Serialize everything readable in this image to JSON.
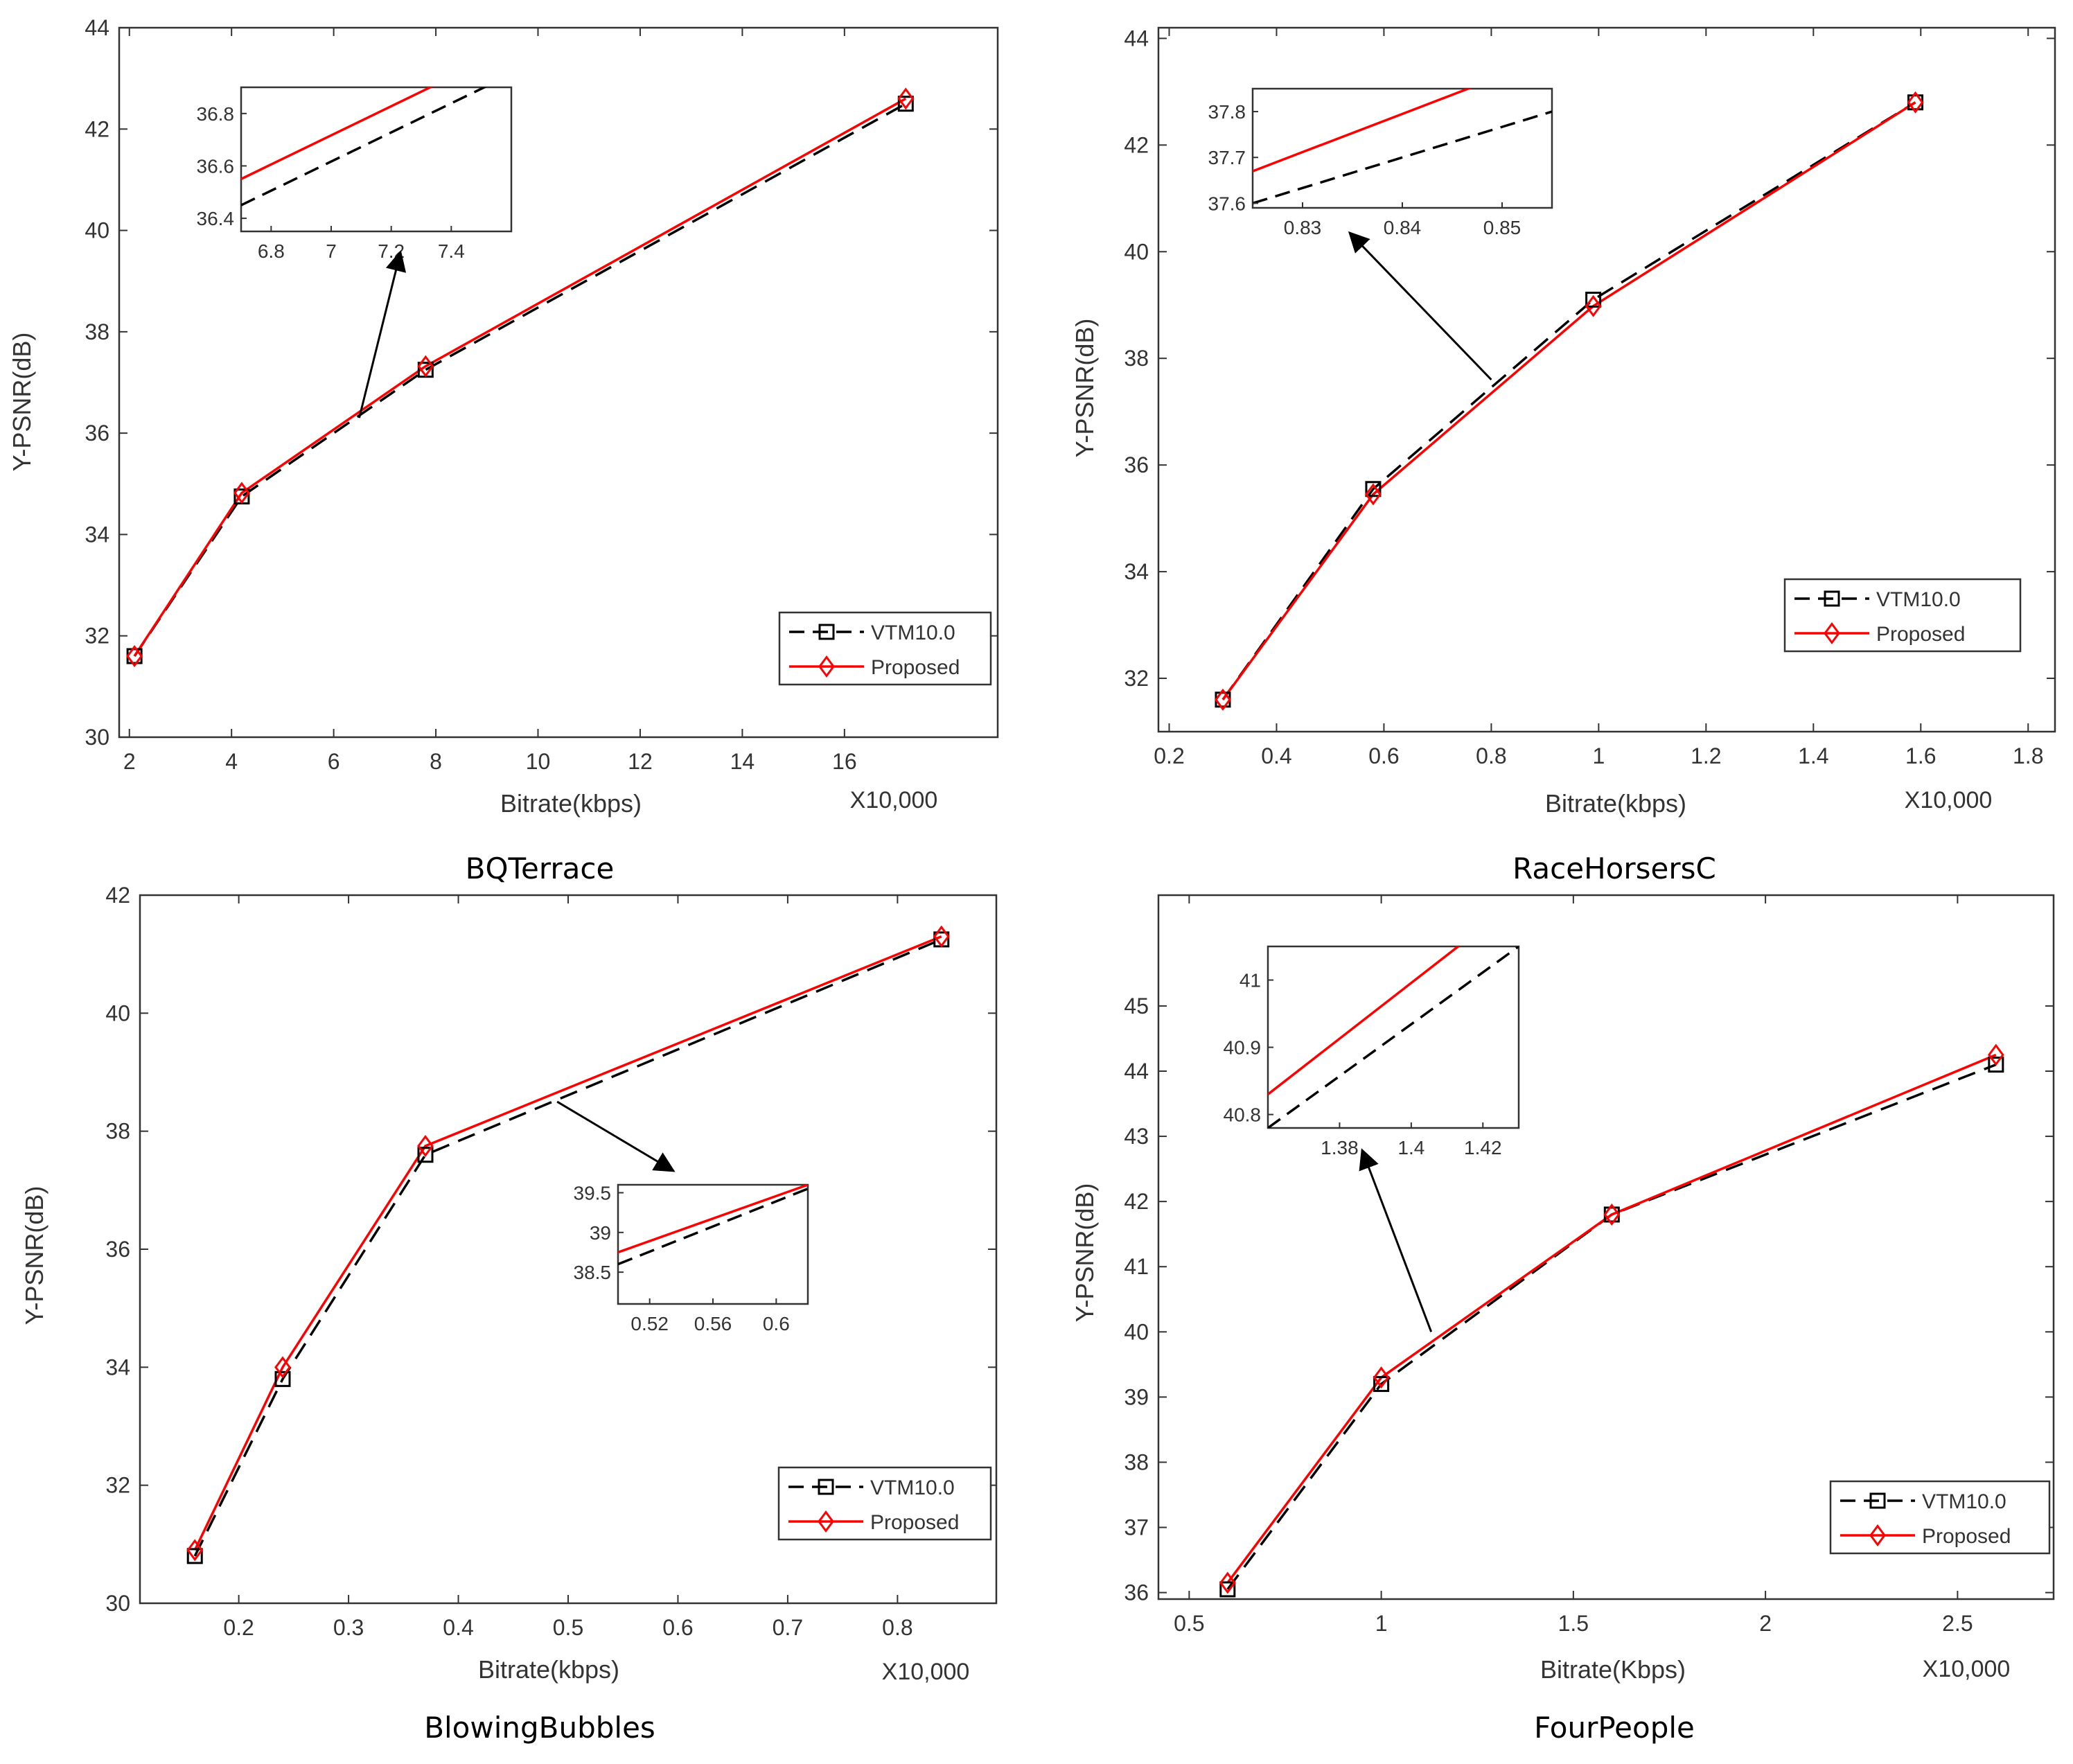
{
  "chart_data": [
    {
      "type": "line",
      "title": "BQTerrace",
      "xlabel": "Bitrate(kbps)",
      "ylabel": "Y-PSNR(dB)",
      "x_scale_note": "X10,000",
      "xlim": [
        1.8,
        19.0
      ],
      "ylim": [
        30,
        44
      ],
      "xticks": [
        2,
        4,
        6,
        8,
        10,
        12,
        14,
        16
      ],
      "yticks": [
        30,
        32,
        34,
        36,
        38,
        40,
        42,
        44
      ],
      "legend_position": "bottom-right",
      "series": [
        {
          "name": "VTM10.0",
          "style": "dashed",
          "color": "#000000",
          "marker": "square",
          "x": [
            2.1,
            4.2,
            7.8,
            17.2
          ],
          "y": [
            31.6,
            34.75,
            37.25,
            42.5
          ]
        },
        {
          "name": "Proposed",
          "style": "solid",
          "color": "#ff0000",
          "marker": "diamond",
          "x": [
            2.1,
            4.2,
            7.8,
            17.2
          ],
          "y": [
            31.6,
            34.82,
            37.32,
            42.6
          ]
        }
      ],
      "inset": {
        "xlim": [
          6.7,
          7.6
        ],
        "ylim": [
          36.35,
          36.9
        ],
        "xticks": [
          6.8,
          7.0,
          7.2,
          7.4
        ],
        "xticklabels": [
          "6.8",
          "7",
          "7.2",
          "7.4"
        ],
        "yticks": [
          36.4,
          36.6,
          36.8
        ],
        "yticklabels": [
          "36.4",
          "36.6",
          "36.8"
        ],
        "series": [
          {
            "name": "VTM10.0",
            "x": [
              6.7,
              7.6
            ],
            "y": [
              36.45,
              36.95
            ]
          },
          {
            "name": "Proposed",
            "x": [
              6.7,
              7.6
            ],
            "y": [
              36.55,
              37.05
            ]
          }
        ],
        "arrow_from": [
          6.5,
          36.3
        ]
      }
    },
    {
      "type": "line",
      "title": "RaceHorsersC",
      "xlabel": "Bitrate(kbps)",
      "ylabel": "Y-PSNR(dB)",
      "x_scale_note": "X10,000",
      "xlim": [
        0.18,
        1.85
      ],
      "ylim": [
        31.0,
        44.2
      ],
      "xticks": [
        0.2,
        0.4,
        0.6,
        0.8,
        1.0,
        1.2,
        1.4,
        1.6,
        1.8
      ],
      "xticklabels": [
        "0.2",
        "0.4",
        "0.6",
        "0.8",
        "1",
        "1.2",
        "1.4",
        "1.6",
        "1.8"
      ],
      "yticks": [
        32,
        34,
        36,
        38,
        40,
        42,
        44
      ],
      "legend_position": "bottom-right",
      "series": [
        {
          "name": "VTM10.0",
          "style": "dashed",
          "color": "#000000",
          "marker": "square",
          "x": [
            0.3,
            0.58,
            0.99,
            1.59
          ],
          "y": [
            31.6,
            35.55,
            39.1,
            42.8
          ]
        },
        {
          "name": "Proposed",
          "style": "solid",
          "color": "#ff0000",
          "marker": "diamond",
          "x": [
            0.3,
            0.58,
            0.99,
            1.59
          ],
          "y": [
            31.6,
            35.45,
            38.98,
            42.8
          ]
        }
      ],
      "inset": {
        "xlim": [
          0.825,
          0.855
        ],
        "ylim": [
          37.59,
          37.85
        ],
        "xticks": [
          0.83,
          0.84,
          0.85
        ],
        "xticklabels": [
          "0.83",
          "0.84",
          "0.85"
        ],
        "yticks": [
          37.6,
          37.7,
          37.8
        ],
        "yticklabels": [
          "37.6",
          "37.7",
          "37.8"
        ],
        "series": [
          {
            "name": "VTM10.0",
            "x": [
              0.825,
              0.855
            ],
            "y": [
              37.6,
              37.8
            ]
          },
          {
            "name": "Proposed",
            "x": [
              0.825,
              0.855
            ],
            "y": [
              37.67,
              37.92
            ]
          }
        ],
        "arrow_from": [
          0.8,
          37.6
        ]
      }
    },
    {
      "type": "line",
      "title": "BlowingBubbles",
      "xlabel": "Bitrate(kbps)",
      "ylabel": "Y-PSNR(dB)",
      "x_scale_note": "X10,000",
      "xlim": [
        0.11,
        0.89
      ],
      "ylim": [
        30,
        42
      ],
      "xticks": [
        0.2,
        0.3,
        0.4,
        0.5,
        0.6,
        0.7,
        0.8
      ],
      "xticklabels": [
        "0.2",
        "0.3",
        "0.4",
        "0.5",
        "0.6",
        "0.7",
        "0.8"
      ],
      "yticks": [
        30,
        32,
        34,
        36,
        38,
        40,
        42
      ],
      "legend_position": "bottom-right",
      "series": [
        {
          "name": "VTM10.0",
          "style": "dashed",
          "color": "#000000",
          "marker": "square",
          "x": [
            0.16,
            0.24,
            0.37,
            0.84
          ],
          "y": [
            30.8,
            33.8,
            37.6,
            41.25
          ]
        },
        {
          "name": "Proposed",
          "style": "solid",
          "color": "#ff0000",
          "marker": "diamond",
          "x": [
            0.16,
            0.24,
            0.37,
            0.84
          ],
          "y": [
            30.9,
            34.0,
            37.75,
            41.3
          ]
        }
      ],
      "inset": {
        "xlim": [
          0.5,
          0.62
        ],
        "ylim": [
          38.1,
          39.6
        ],
        "xticks": [
          0.52,
          0.56,
          0.6
        ],
        "xticklabels": [
          "0.52",
          "0.56",
          "0.6"
        ],
        "yticks": [
          38.5,
          39,
          39.5
        ],
        "yticklabels": [
          "38.5",
          "39",
          "39.5"
        ],
        "series": [
          {
            "name": "VTM10.0",
            "x": [
              0.5,
              0.62
            ],
            "y": [
              38.6,
              39.55
            ]
          },
          {
            "name": "Proposed",
            "x": [
              0.5,
              0.62
            ],
            "y": [
              38.75,
              39.6
            ]
          }
        ],
        "arrow_from": [
          0.49,
          38.5
        ]
      }
    },
    {
      "type": "line",
      "title": "FourPeople",
      "xlabel": "Bitrate(Kbps)",
      "ylabel": "Y-PSNR(dB)",
      "x_scale_note": "X10,000",
      "xlim": [
        0.42,
        2.75
      ],
      "ylim": [
        35.9,
        46.7
      ],
      "xticks": [
        0.5,
        1.0,
        1.5,
        2.0,
        2.5
      ],
      "xticklabels": [
        "0.5",
        "1",
        "1.5",
        "2",
        "2.5"
      ],
      "yticks": [
        36,
        37,
        38,
        39,
        40,
        41,
        42,
        43,
        44,
        45
      ],
      "legend_position": "bottom-right",
      "series": [
        {
          "name": "VTM10.0",
          "style": "dashed",
          "color": "#000000",
          "marker": "square",
          "x": [
            0.6,
            1.0,
            1.6,
            2.6
          ],
          "y": [
            36.05,
            39.2,
            41.8,
            44.1
          ]
        },
        {
          "name": "Proposed",
          "style": "solid",
          "color": "#ff0000",
          "marker": "diamond",
          "x": [
            0.6,
            1.0,
            1.6,
            2.6
          ],
          "y": [
            36.15,
            39.3,
            41.8,
            44.25
          ]
        }
      ],
      "inset": {
        "xlim": [
          1.36,
          1.43
        ],
        "ylim": [
          40.78,
          41.05
        ],
        "xticks": [
          1.38,
          1.4,
          1.42
        ],
        "xticklabels": [
          "1.38",
          "1.4",
          "1.42"
        ],
        "yticks": [
          40.8,
          40.9,
          41.0
        ],
        "yticklabels": [
          "40.8",
          "40.9",
          "41"
        ],
        "series": [
          {
            "name": "VTM10.0",
            "x": [
              1.36,
              1.43
            ],
            "y": [
              40.78,
              41.05
            ]
          },
          {
            "name": "Proposed",
            "x": [
              1.36,
              1.43
            ],
            "y": [
              40.83,
              41.12
            ]
          }
        ],
        "arrow_from": [
          1.13,
          40.0
        ]
      }
    }
  ]
}
